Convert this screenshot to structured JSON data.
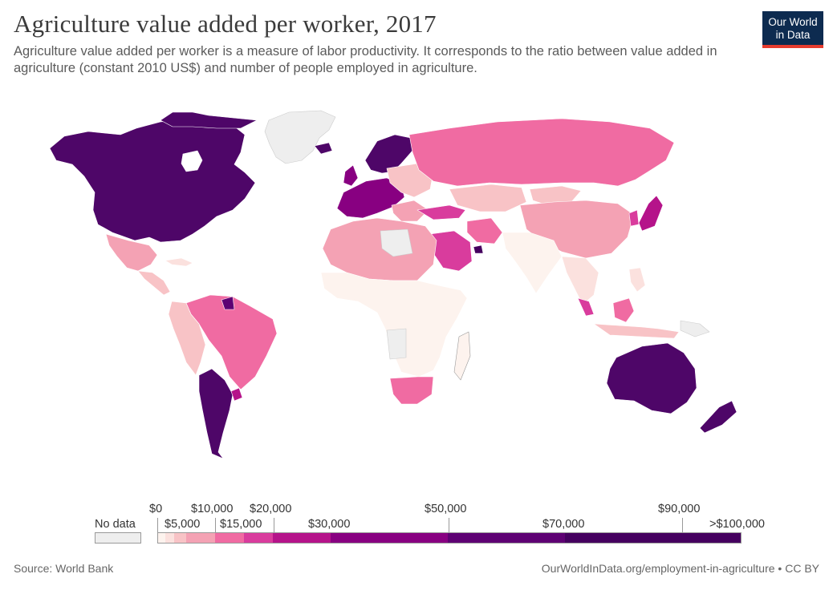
{
  "header": {
    "title": "Agriculture value added per worker, 2017",
    "subtitle": "Agriculture value added per worker is a measure of labor productivity. It corresponds to the ratio between value added in agriculture (constant 2010 US$) and number of people employed in agriculture."
  },
  "logo": {
    "line1": "Our World",
    "line2": "in Data",
    "bg": "#0d2b50",
    "accent": "#e63c2f"
  },
  "legend": {
    "no_data_label": "No data",
    "no_data_color": "#eeeeee",
    "upper_labels": [
      "$0",
      "$10,000",
      "$20,000",
      "$50,000",
      "$90,000"
    ],
    "lower_labels": [
      "$5,000",
      "$15,000",
      "$30,000",
      "$70,000",
      ">$100,000"
    ],
    "bins": [
      {
        "from": 0,
        "to": 2500,
        "color": "#fdf3ee"
      },
      {
        "from": 2500,
        "to": 5000,
        "color": "#fbe1de"
      },
      {
        "from": 5000,
        "to": 10000,
        "color": "#f8c3c6"
      },
      {
        "from": 10000,
        "to": 15000,
        "color": "#f4a2b4"
      },
      {
        "from": 15000,
        "to": 20000,
        "color": "#f06ba2"
      },
      {
        "from": 20000,
        "to": 30000,
        "color": "#d93c9d"
      },
      {
        "from": 30000,
        "to": 50000,
        "color": "#b5138a"
      },
      {
        "from": 50000,
        "to": 70000,
        "color": "#880081"
      },
      {
        "from": 70000,
        "to": 90000,
        "color": "#5e0173"
      },
      {
        "from": 90000,
        "to": 100000,
        "color": "#45005f"
      }
    ]
  },
  "footer": {
    "source": "Source: World Bank",
    "url": "OurWorldInData.org/employment-in-agriculture • CC BY"
  }
}
